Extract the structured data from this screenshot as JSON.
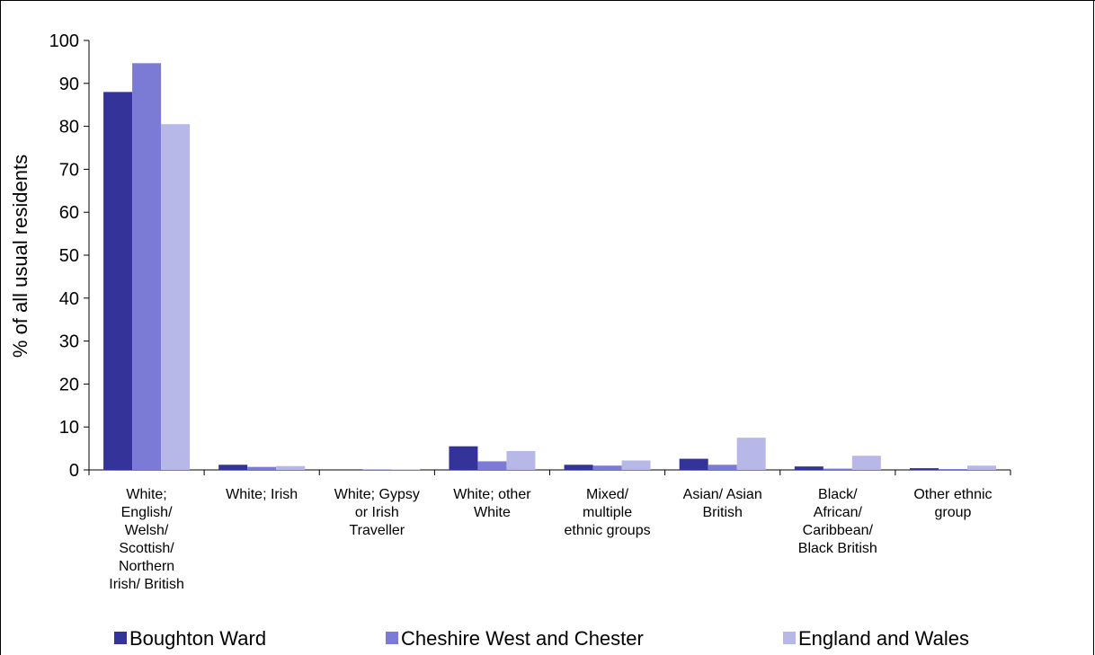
{
  "chart_data": {
    "type": "bar",
    "title": "",
    "xlabel": "",
    "ylabel": "% of all usual residents",
    "ylim": [
      0,
      100
    ],
    "yticks": [
      0,
      10,
      20,
      30,
      40,
      50,
      60,
      70,
      80,
      90,
      100
    ],
    "grid": false,
    "legend_position": "bottom",
    "categories": [
      "White; English/ Welsh/ Scottish/ Northern Irish/ British",
      "White; Irish",
      "White; Gypsy or Irish Traveller",
      "White; other White",
      "Mixed/ multiple ethnic groups",
      "Asian/ Asian British",
      "Black/ African/ Caribbean/ Black British",
      "Other ethnic group"
    ],
    "category_label_lines": [
      [
        "White;",
        "English/",
        "Welsh/",
        "Scottish/",
        "Northern",
        "Irish/ British"
      ],
      [
        "White; Irish"
      ],
      [
        "White; Gypsy",
        "or Irish",
        "Traveller"
      ],
      [
        "White; other",
        "White"
      ],
      [
        "Mixed/",
        "multiple",
        "ethnic groups"
      ],
      [
        "Asian/ Asian",
        "British"
      ],
      [
        "Black/",
        "African/",
        "Caribbean/",
        "Black British"
      ],
      [
        "Other ethnic",
        "group"
      ]
    ],
    "series": [
      {
        "name": "Boughton Ward",
        "color": "#333399",
        "values": [
          88.0,
          1.2,
          0.0,
          5.5,
          1.2,
          2.6,
          0.8,
          0.4
        ]
      },
      {
        "name": "Cheshire West and Chester",
        "color": "#7b7bd5",
        "values": [
          94.7,
          0.7,
          0.1,
          2.0,
          1.0,
          1.2,
          0.3,
          0.2
        ]
      },
      {
        "name": "England and Wales",
        "color": "#b8b8e8",
        "values": [
          80.5,
          0.9,
          0.1,
          4.4,
          2.2,
          7.5,
          3.3,
          1.0
        ]
      }
    ]
  }
}
